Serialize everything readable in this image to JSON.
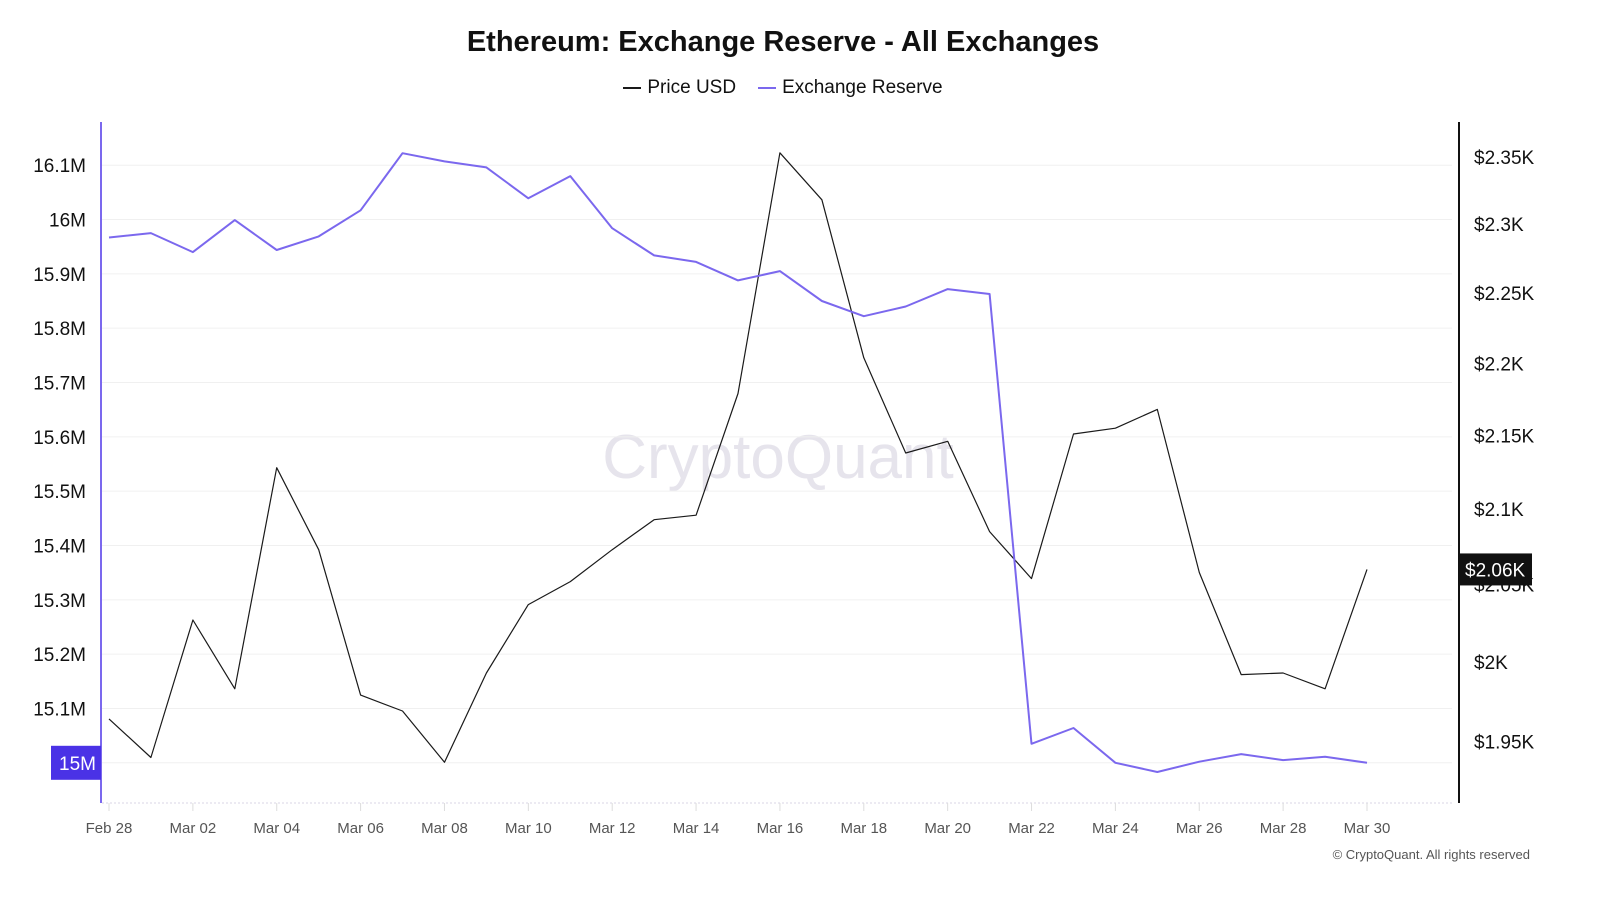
{
  "chart_data": {
    "type": "line",
    "title": "Ethereum: Exchange Reserve - All Exchanges",
    "x": [
      "Feb 28",
      "Mar 01",
      "Mar 02",
      "Mar 03",
      "Mar 04",
      "Mar 05",
      "Mar 06",
      "Mar 07",
      "Mar 08",
      "Mar 09",
      "Mar 10",
      "Mar 11",
      "Mar 12",
      "Mar 13",
      "Mar 14",
      "Mar 15",
      "Mar 16",
      "Mar 17",
      "Mar 18",
      "Mar 19",
      "Mar 20",
      "Mar 21",
      "Mar 22",
      "Mar 23",
      "Mar 24",
      "Mar 25",
      "Mar 26",
      "Mar 27",
      "Mar 28",
      "Mar 29",
      "Mar 30"
    ],
    "x_tick_labels": [
      "Feb 28",
      "Mar 02",
      "Mar 04",
      "Mar 06",
      "Mar 08",
      "Mar 10",
      "Mar 12",
      "Mar 14",
      "Mar 16",
      "Mar 18",
      "Mar 20",
      "Mar 22",
      "Mar 24",
      "Mar 26",
      "Mar 28",
      "Mar 30"
    ],
    "series": [
      {
        "name": "Price USD",
        "axis": "right",
        "color": "#1a1a1a",
        "values": [
          1964,
          1940,
          2027,
          1983,
          2128,
          2073,
          1979,
          1969,
          1937,
          1993,
          2037,
          2052,
          2073,
          2093,
          2096,
          2179,
          2353,
          2318,
          2204,
          2138,
          2146,
          2085,
          2054,
          2151,
          2155,
          2168,
          2058,
          1992,
          1993,
          1983,
          2060
        ]
      },
      {
        "name": "Exchange Reserve",
        "axis": "left",
        "color": "#7b68ee",
        "values": [
          15.967,
          15.975,
          15.94,
          15.999,
          15.944,
          15.969,
          16.017,
          16.122,
          16.107,
          16.096,
          16.039,
          16.08,
          15.984,
          15.934,
          15.922,
          15.888,
          15.905,
          15.85,
          15.822,
          15.84,
          15.872,
          15.863,
          15.035,
          15.064,
          15.0,
          14.983,
          15.002,
          15.016,
          15.005,
          15.011,
          15.0
        ]
      }
    ],
    "left_axis": {
      "unit": "M",
      "ylim": [
        14.926,
        16.174
      ],
      "ticks": [
        15.1,
        15.2,
        15.3,
        15.4,
        15.5,
        15.6,
        15.7,
        15.8,
        15.9,
        16,
        16.1
      ],
      "tick_labels": [
        "15.1M",
        "15.2M",
        "15.3M",
        "15.4M",
        "15.5M",
        "15.6M",
        "15.7M",
        "15.8M",
        "15.9M",
        "16M",
        "16.1M"
      ],
      "current_label": "15M",
      "current_value": 15.0,
      "color": "#7b68ee",
      "badge_color": "#4a32e6"
    },
    "right_axis": {
      "scale": "log",
      "ylim": [
        1912,
        2374
      ],
      "ticks": [
        1950,
        2000,
        2050,
        2100,
        2150,
        2200,
        2250,
        2300,
        2350
      ],
      "tick_labels": [
        "$1.95K",
        "$2K",
        "$2.05K",
        "$2.1K",
        "$2.15K",
        "$2.2K",
        "$2.25K",
        "$2.3K",
        "$2.35K"
      ],
      "current_label": "$2.06K",
      "current_value": 2060,
      "color": "#111111"
    },
    "grid": true,
    "legend": "top-center",
    "watermark": "CryptoQuant"
  },
  "footer": "© CryptoQuant. All rights reserved"
}
